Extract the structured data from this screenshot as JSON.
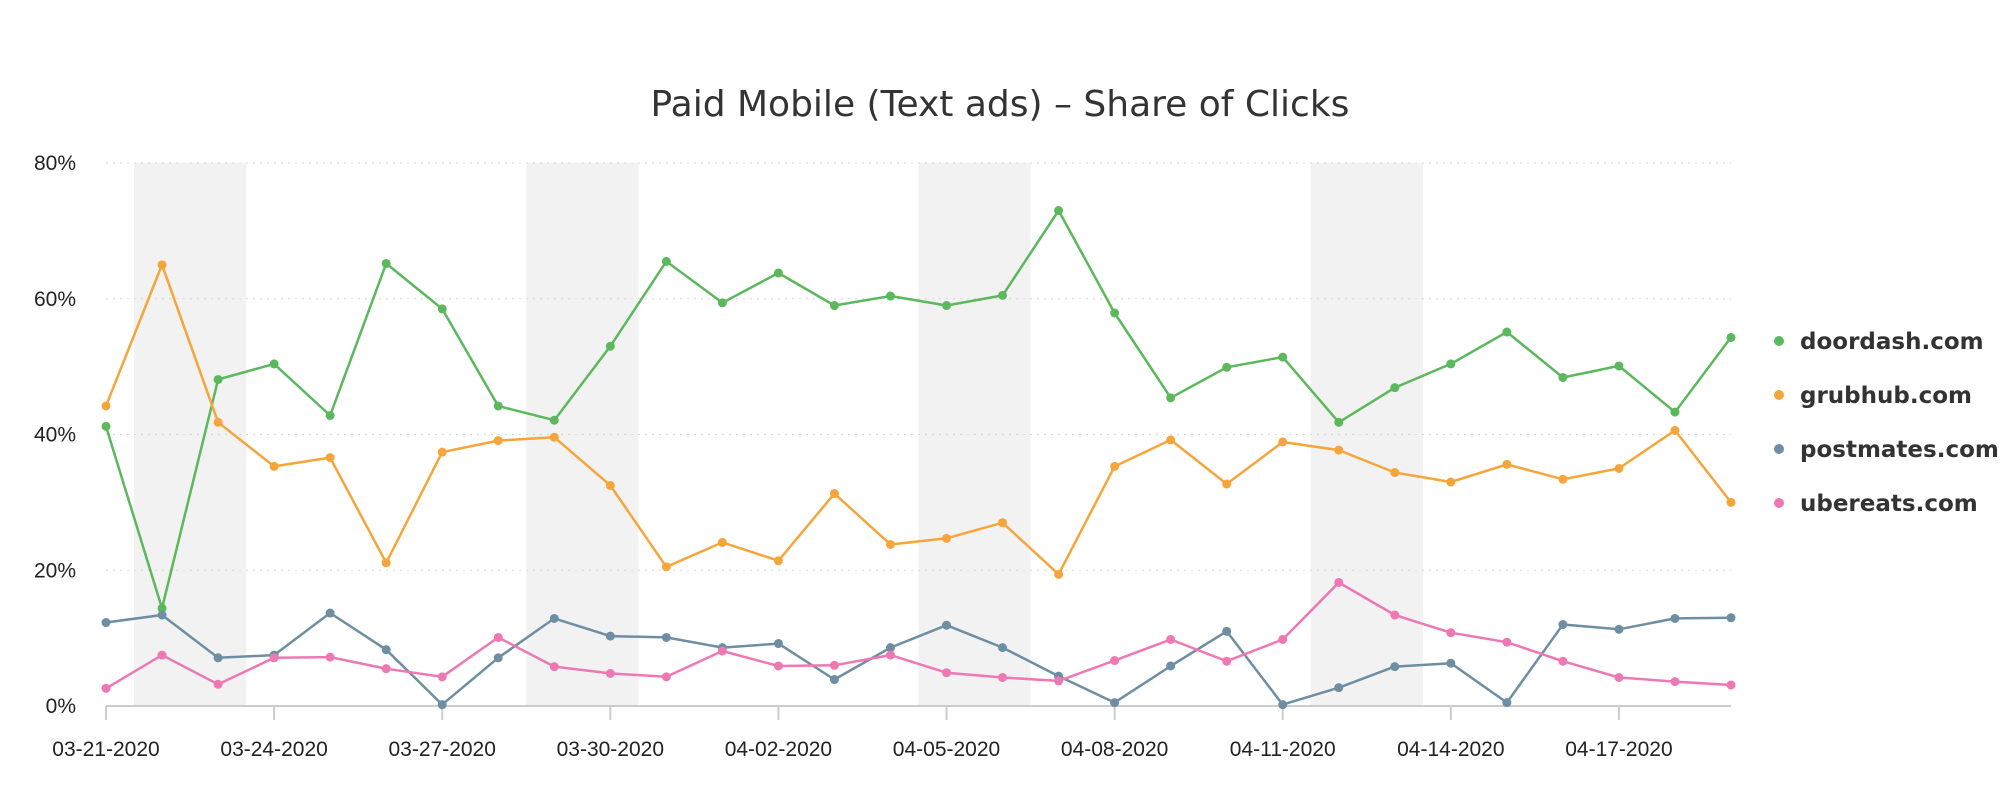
{
  "chart_data": {
    "type": "line",
    "title": "Paid Mobile (Text ads) – Share of Clicks",
    "xlabel": "",
    "ylabel": "",
    "ylim": [
      0,
      80
    ],
    "yticks": [
      "0%",
      "20%",
      "40%",
      "60%",
      "80%"
    ],
    "grid": true,
    "legend_position": "right",
    "x": [
      "03-21-2020",
      "03-22-2020",
      "03-23-2020",
      "03-24-2020",
      "03-25-2020",
      "03-26-2020",
      "03-27-2020",
      "03-28-2020",
      "03-29-2020",
      "03-30-2020",
      "03-31-2020",
      "04-01-2020",
      "04-02-2020",
      "04-03-2020",
      "04-04-2020",
      "04-05-2020",
      "04-06-2020",
      "04-07-2020",
      "04-08-2020",
      "04-09-2020",
      "04-10-2020",
      "04-11-2020",
      "04-12-2020",
      "04-13-2020",
      "04-14-2020",
      "04-15-2020",
      "04-16-2020",
      "04-17-2020",
      "04-18-2020",
      "04-19-2020"
    ],
    "xtick_labels": [
      "03-21-2020",
      "03-24-2020",
      "03-27-2020",
      "03-30-2020",
      "04-02-2020",
      "04-05-2020",
      "04-08-2020",
      "04-11-2020",
      "04-14-2020",
      "04-17-2020"
    ],
    "weekend_bands": [
      [
        "03-22-2020",
        "03-23-2020"
      ],
      [
        "03-29-2020",
        "03-30-2020"
      ],
      [
        "04-05-2020",
        "04-06-2020"
      ],
      [
        "04-12-2020",
        "04-13-2020"
      ]
    ],
    "series": [
      {
        "name": "doordash.com",
        "color": "#5cb85c",
        "values": [
          41.2,
          14.4,
          48.1,
          50.4,
          42.8,
          65.2,
          58.5,
          44.2,
          42.1,
          53.0,
          65.5,
          59.4,
          63.8,
          59.0,
          60.4,
          59.0,
          60.5,
          73.0,
          57.9,
          45.4,
          49.9,
          51.4,
          41.8,
          46.9,
          50.4,
          55.1,
          48.4,
          50.1,
          43.3,
          54.3
        ]
      },
      {
        "name": "grubhub.com",
        "color": "#f6a53b",
        "values": [
          44.2,
          65.0,
          41.8,
          35.3,
          36.6,
          21.1,
          37.4,
          39.1,
          39.6,
          32.5,
          20.5,
          24.1,
          21.4,
          31.3,
          23.8,
          24.7,
          27.0,
          19.4,
          35.3,
          39.2,
          32.7,
          38.9,
          37.7,
          34.4,
          33.0,
          35.6,
          33.4,
          35.0,
          40.6,
          30.0
        ]
      },
      {
        "name": "postmates.com",
        "color": "#6e8ea3",
        "values": [
          12.3,
          13.4,
          7.1,
          7.5,
          13.7,
          8.3,
          0.2,
          7.1,
          12.9,
          10.3,
          10.1,
          8.6,
          9.2,
          3.9,
          8.6,
          11.9,
          8.6,
          4.4,
          0.5,
          5.9,
          11.0,
          0.2,
          2.7,
          5.8,
          6.3,
          0.5,
          12.0,
          11.3,
          12.9,
          13.0
        ]
      },
      {
        "name": "ubereats.com",
        "color": "#ee78b4",
        "values": [
          2.6,
          7.5,
          3.2,
          7.1,
          7.2,
          5.5,
          4.3,
          10.1,
          5.8,
          4.8,
          4.3,
          8.1,
          5.9,
          6.0,
          7.5,
          4.9,
          4.2,
          3.7,
          6.7,
          9.8,
          6.6,
          9.8,
          18.2,
          13.4,
          10.8,
          9.4,
          6.6,
          4.2,
          3.6,
          3.1
        ]
      }
    ]
  }
}
